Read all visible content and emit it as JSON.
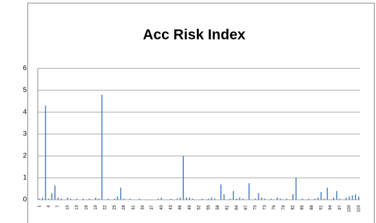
{
  "chart_data": {
    "type": "bar",
    "title": "Acc Risk Index",
    "categories": [
      "1",
      null,
      null,
      "4",
      null,
      null,
      "7",
      null,
      null,
      "10",
      null,
      null,
      "13",
      null,
      null,
      "16",
      null,
      null,
      "19",
      null,
      null,
      "22",
      null,
      null,
      "25",
      null,
      null,
      "28",
      null,
      null,
      "31",
      null,
      null,
      "34",
      null,
      null,
      "37",
      null,
      null,
      "40",
      null,
      null,
      "43",
      null,
      null,
      "46",
      null,
      null,
      "49",
      null,
      null,
      "52",
      null,
      null,
      "55",
      null,
      null,
      "58",
      null,
      null,
      "61",
      null,
      null,
      "64",
      null,
      null,
      "67",
      null,
      null,
      "70",
      null,
      null,
      "73",
      null,
      null,
      "76",
      null,
      null,
      "79",
      null,
      null,
      "82",
      null,
      null,
      "85",
      null,
      null,
      "88",
      null,
      null,
      "91",
      null,
      null,
      "94",
      null,
      null,
      "97",
      null,
      null,
      "100",
      null,
      null,
      "103"
    ],
    "values": [
      0.05,
      0.1,
      4.3,
      0.05,
      0.3,
      0.65,
      0.1,
      0.05,
      0,
      0.1,
      0.05,
      0,
      0.05,
      0,
      0.05,
      0,
      0.05,
      0,
      0.1,
      0.05,
      4.8,
      0,
      0.05,
      0,
      0.05,
      0.15,
      0.55,
      0.05,
      0,
      0.05,
      0,
      0,
      0.05,
      0,
      0,
      0,
      0,
      0,
      0.05,
      0.1,
      0,
      0,
      0.05,
      0,
      0.05,
      0.1,
      2.0,
      0.1,
      0.1,
      0.05,
      0,
      0,
      0.05,
      0,
      0.05,
      0.1,
      0.05,
      0,
      0.7,
      0.25,
      0,
      0.05,
      0.4,
      0.05,
      0.1,
      0.05,
      0,
      0.75,
      0,
      0.05,
      0.3,
      0.1,
      0.05,
      0,
      0.05,
      0,
      0.1,
      0.05,
      0,
      0.05,
      0,
      0.25,
      1.0,
      0,
      0.05,
      0,
      0.05,
      0,
      0.05,
      0.1,
      0.35,
      0.05,
      0.55,
      0,
      0.1,
      0.4,
      0.05,
      0,
      0.1,
      0.15,
      0.2,
      0.25,
      0.15
    ],
    "color": "#4f81bd",
    "ylim": [
      0,
      6
    ],
    "yticks": [
      0,
      1,
      2,
      3,
      4,
      5,
      6
    ],
    "grid": true
  }
}
